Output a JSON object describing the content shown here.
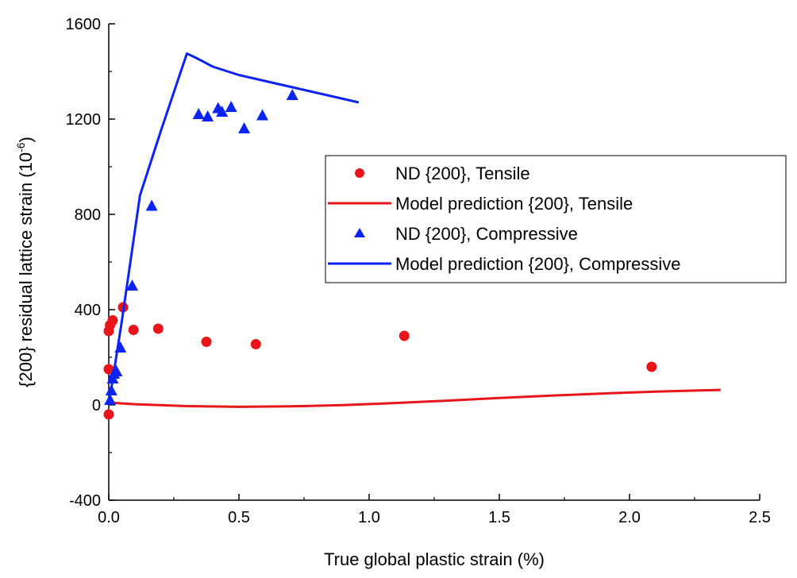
{
  "chart_data": {
    "type": "scatter",
    "title": "",
    "xlabel": "True global plastic strain (%)",
    "ylabel_main": "{200} residual lattice strain (10",
    "ylabel_sup": "-6",
    "ylabel_tail": ")",
    "xlim": [
      0.0,
      2.5
    ],
    "ylim": [
      -400,
      1600
    ],
    "x_ticks": [
      "0.0",
      "0.5",
      "1.0",
      "1.5",
      "2.0",
      "2.5"
    ],
    "y_ticks": [
      "-400",
      "0",
      "400",
      "800",
      "1200",
      "1600"
    ],
    "legend_position": "center-right",
    "series": [
      {
        "name": "ND {200}, Tensile",
        "kind": "marker-circle",
        "color": "#e8161b",
        "x": [
          0.0,
          0.0,
          0.0,
          0.005,
          0.015,
          0.055,
          0.095,
          0.19,
          0.375,
          0.565,
          1.135,
          2.085
        ],
        "y": [
          -40,
          150,
          310,
          335,
          355,
          410,
          315,
          320,
          265,
          255,
          290,
          160
        ]
      },
      {
        "name": "Model prediction {200}, Tensile",
        "kind": "line",
        "color": "#e8161b",
        "x": [
          0.0,
          0.1,
          0.3,
          0.5,
          0.7,
          0.9,
          1.1,
          1.3,
          1.5,
          1.7,
          1.9,
          2.1,
          2.35
        ],
        "y": [
          10,
          3,
          -5,
          -8,
          -6,
          -1,
          8,
          18,
          29,
          39,
          48,
          56,
          63
        ]
      },
      {
        "name": "ND {200}, Compressive",
        "kind": "marker-triangle",
        "color": "#0b24f4",
        "x": [
          0.005,
          0.01,
          0.015,
          0.02,
          0.03,
          0.045,
          0.09,
          0.165,
          0.345,
          0.38,
          0.42,
          0.435,
          0.47,
          0.52,
          0.59,
          0.705
        ],
        "y": [
          20,
          60,
          110,
          130,
          140,
          240,
          500,
          835,
          1220,
          1210,
          1245,
          1230,
          1250,
          1160,
          1215,
          1300
        ]
      },
      {
        "name": "Model prediction {200}, Compressive",
        "kind": "line",
        "color": "#0b24f4",
        "x": [
          0.0,
          0.05,
          0.12,
          0.2,
          0.3,
          0.33,
          0.4,
          0.5,
          0.6,
          0.7,
          0.8,
          0.96
        ],
        "y": [
          0,
          350,
          880,
          1150,
          1475,
          1460,
          1420,
          1385,
          1360,
          1335,
          1310,
          1270
        ]
      }
    ]
  }
}
